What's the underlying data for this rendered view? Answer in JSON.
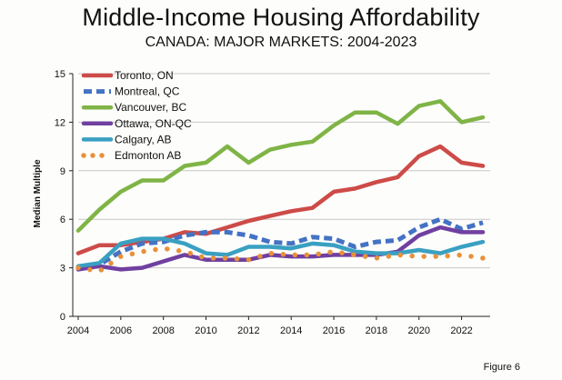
{
  "figure_label": "Figure 6",
  "chart_data": {
    "type": "line",
    "title": "Middle-Income Housing Affordability",
    "subtitle": "CANADA: MAJOR MARKETS: 2004-2023",
    "xlabel": "",
    "ylabel": "Median Multiple",
    "xlim": [
      2004,
      2023
    ],
    "ylim": [
      0,
      15
    ],
    "x_ticks": [
      2004,
      2006,
      2008,
      2010,
      2012,
      2014,
      2016,
      2018,
      2020,
      2022
    ],
    "y_ticks": [
      0,
      3,
      6,
      9,
      12,
      15
    ],
    "grid": "horizontal",
    "legend_position": "top-left",
    "x": [
      2004,
      2005,
      2006,
      2007,
      2008,
      2009,
      2010,
      2011,
      2012,
      2013,
      2014,
      2015,
      2016,
      2017,
      2018,
      2019,
      2020,
      2021,
      2022,
      2023
    ],
    "series": [
      {
        "name": "Toronto, ON",
        "color": "#cd4b48",
        "style": "solid",
        "values": [
          3.9,
          4.4,
          4.4,
          4.6,
          4.8,
          5.2,
          5.1,
          5.5,
          5.9,
          6.2,
          6.5,
          6.7,
          7.7,
          7.9,
          8.3,
          8.6,
          9.9,
          10.5,
          9.5,
          9.3
        ]
      },
      {
        "name": "Montreal, QC",
        "color": "#4472c4",
        "style": "dashed",
        "values": [
          3.0,
          3.2,
          4.0,
          4.5,
          4.6,
          5.0,
          5.2,
          5.2,
          5.0,
          4.6,
          4.5,
          4.9,
          4.8,
          4.3,
          4.6,
          4.7,
          5.5,
          6.0,
          5.4,
          5.8
        ]
      },
      {
        "name": "Vancouver, BC",
        "color": "#7fb446",
        "style": "solid",
        "values": [
          5.3,
          6.6,
          7.7,
          8.4,
          8.4,
          9.3,
          9.5,
          10.5,
          9.5,
          10.3,
          10.6,
          10.8,
          11.8,
          12.6,
          12.6,
          11.9,
          13.0,
          13.3,
          12.0,
          12.3
        ]
      },
      {
        "name": "Ottawa, ON-QC",
        "color": "#7040a0",
        "style": "solid",
        "values": [
          2.9,
          3.1,
          2.9,
          3.0,
          3.4,
          3.8,
          3.5,
          3.5,
          3.5,
          3.8,
          3.7,
          3.7,
          3.8,
          3.8,
          3.8,
          4.0,
          5.0,
          5.5,
          5.2,
          5.2
        ]
      },
      {
        "name": "Calgary, AB",
        "color": "#3aa0c2",
        "style": "solid",
        "values": [
          3.1,
          3.3,
          4.5,
          4.8,
          4.8,
          4.5,
          3.9,
          3.8,
          4.3,
          4.3,
          4.2,
          4.5,
          4.4,
          4.0,
          3.9,
          3.9,
          4.1,
          3.9,
          4.3,
          4.6
        ]
      },
      {
        "name": "Edmonton AB",
        "color": "#e8913a",
        "style": "dotted",
        "values": [
          3.0,
          2.8,
          3.7,
          4.0,
          4.2,
          4.0,
          3.6,
          3.6,
          3.5,
          3.9,
          3.8,
          3.8,
          4.0,
          3.8,
          3.6,
          3.8,
          3.7,
          3.7,
          3.8,
          3.6
        ]
      }
    ]
  }
}
